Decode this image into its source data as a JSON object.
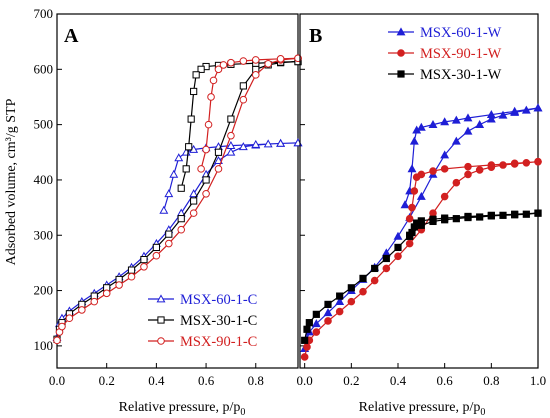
{
  "chart_data": [
    {
      "type": "line",
      "panel_label": "A",
      "xlabel": "Relative pressure, p/p",
      "xlabel_sub": "0",
      "ylabel": "Adsorbed volume, cm³/g STP",
      "xlim": [
        0.0,
        0.97
      ],
      "ylim": [
        60,
        700
      ],
      "xticks": [
        0.0,
        0.2,
        0.4,
        0.6,
        0.8
      ],
      "xtick_labels": [
        "0.0",
        "0.2",
        "0.4",
        "0.6",
        "0.8"
      ],
      "yticks": [
        100,
        200,
        300,
        400,
        500,
        600,
        700
      ],
      "ytick_labels": [
        "100",
        "200",
        "300",
        "400",
        "500",
        "600",
        "700"
      ],
      "legend_position": "bottom-right",
      "series": [
        {
          "name": "MSX-60-1-C",
          "color": "#1f1fd6",
          "marker": "triangle-open",
          "adsorption": [
            [
              0.0,
              115
            ],
            [
              0.01,
              140
            ],
            [
              0.02,
              150
            ],
            [
              0.05,
              163
            ],
            [
              0.1,
              180
            ],
            [
              0.15,
              195
            ],
            [
              0.2,
              210
            ],
            [
              0.25,
              225
            ],
            [
              0.3,
              242
            ],
            [
              0.35,
              262
            ],
            [
              0.4,
              285
            ],
            [
              0.45,
              310
            ],
            [
              0.5,
              340
            ],
            [
              0.55,
              375
            ],
            [
              0.6,
              410
            ],
            [
              0.65,
              435
            ],
            [
              0.7,
              450
            ],
            [
              0.75,
              460
            ],
            [
              0.8,
              463
            ],
            [
              0.85,
              465
            ],
            [
              0.9,
              466
            ],
            [
              0.97,
              467
            ]
          ],
          "desorption": [
            [
              0.97,
              467
            ],
            [
              0.9,
              466
            ],
            [
              0.8,
              464
            ],
            [
              0.7,
              462
            ],
            [
              0.65,
              460
            ],
            [
              0.6,
              458
            ],
            [
              0.55,
              455
            ],
            [
              0.52,
              450
            ],
            [
              0.49,
              440
            ],
            [
              0.47,
              410
            ],
            [
              0.45,
              375
            ],
            [
              0.43,
              345
            ]
          ]
        },
        {
          "name": "MSX-30-1-C",
          "color": "#000000",
          "marker": "square-open",
          "adsorption": [
            [
              0.0,
              112
            ],
            [
              0.01,
              130
            ],
            [
              0.02,
              142
            ],
            [
              0.05,
              158
            ],
            [
              0.1,
              175
            ],
            [
              0.15,
              190
            ],
            [
              0.2,
              205
            ],
            [
              0.25,
              220
            ],
            [
              0.3,
              237
            ],
            [
              0.35,
              256
            ],
            [
              0.4,
              278
            ],
            [
              0.45,
              302
            ],
            [
              0.5,
              330
            ],
            [
              0.55,
              362
            ],
            [
              0.6,
              400
            ],
            [
              0.65,
              450
            ],
            [
              0.7,
              510
            ],
            [
              0.75,
              570
            ],
            [
              0.8,
              600
            ],
            [
              0.85,
              608
            ],
            [
              0.9,
              612
            ],
            [
              0.97,
              614
            ]
          ],
          "desorption": [
            [
              0.97,
              614
            ],
            [
              0.9,
              613
            ],
            [
              0.8,
              611
            ],
            [
              0.7,
              609
            ],
            [
              0.65,
              607
            ],
            [
              0.6,
              605
            ],
            [
              0.58,
              600
            ],
            [
              0.56,
              590
            ],
            [
              0.55,
              560
            ],
            [
              0.54,
              510
            ],
            [
              0.53,
              460
            ],
            [
              0.52,
              420
            ],
            [
              0.5,
              385
            ]
          ]
        },
        {
          "name": "MSX-90-1-C",
          "color": "#d22020",
          "marker": "circle-open",
          "adsorption": [
            [
              0.0,
              110
            ],
            [
              0.01,
              125
            ],
            [
              0.02,
              135
            ],
            [
              0.05,
              150
            ],
            [
              0.1,
              165
            ],
            [
              0.15,
              180
            ],
            [
              0.2,
              195
            ],
            [
              0.25,
              210
            ],
            [
              0.3,
              225
            ],
            [
              0.35,
              243
            ],
            [
              0.4,
              263
            ],
            [
              0.45,
              285
            ],
            [
              0.5,
              310
            ],
            [
              0.55,
              340
            ],
            [
              0.6,
              375
            ],
            [
              0.65,
              420
            ],
            [
              0.7,
              480
            ],
            [
              0.75,
              545
            ],
            [
              0.8,
              590
            ],
            [
              0.85,
              610
            ],
            [
              0.9,
              617
            ],
            [
              0.97,
              620
            ]
          ],
          "desorption": [
            [
              0.97,
              620
            ],
            [
              0.9,
              619
            ],
            [
              0.8,
              617
            ],
            [
              0.75,
              615
            ],
            [
              0.7,
              612
            ],
            [
              0.67,
              608
            ],
            [
              0.65,
              600
            ],
            [
              0.63,
              580
            ],
            [
              0.62,
              550
            ],
            [
              0.61,
              500
            ],
            [
              0.6,
              455
            ],
            [
              0.58,
              420
            ]
          ]
        }
      ]
    },
    {
      "type": "line",
      "panel_label": "B",
      "xlabel": "Relative pressure, p/p",
      "xlabel_sub": "0",
      "xlim": [
        -0.02,
        1.0
      ],
      "ylim": [
        60,
        700
      ],
      "xticks": [
        0.0,
        0.2,
        0.4,
        0.6,
        0.8,
        1.0
      ],
      "xtick_labels": [
        "0.0",
        "0.2",
        "0.4",
        "0.6",
        "0.8",
        "1.0"
      ],
      "yticks": [
        100,
        200,
        300,
        400,
        500,
        600,
        700
      ],
      "legend_position": "top-right",
      "series": [
        {
          "name": "MSX-60-1-W",
          "color": "#1f1fd6",
          "marker": "triangle-filled",
          "adsorption": [
            [
              0.0,
              95
            ],
            [
              0.01,
              112
            ],
            [
              0.02,
              125
            ],
            [
              0.05,
              140
            ],
            [
              0.1,
              160
            ],
            [
              0.15,
              180
            ],
            [
              0.2,
              200
            ],
            [
              0.25,
              220
            ],
            [
              0.3,
              242
            ],
            [
              0.35,
              268
            ],
            [
              0.4,
              298
            ],
            [
              0.45,
              332
            ],
            [
              0.5,
              370
            ],
            [
              0.55,
              410
            ],
            [
              0.6,
              445
            ],
            [
              0.65,
              470
            ],
            [
              0.7,
              488
            ],
            [
              0.75,
              500
            ],
            [
              0.8,
              510
            ],
            [
              0.85,
              517
            ],
            [
              0.9,
              522
            ],
            [
              0.95,
              526
            ],
            [
              1.0,
              530
            ]
          ],
          "desorption": [
            [
              1.0,
              530
            ],
            [
              0.9,
              524
            ],
            [
              0.8,
              518
            ],
            [
              0.7,
              512
            ],
            [
              0.65,
              508
            ],
            [
              0.6,
              505
            ],
            [
              0.55,
              500
            ],
            [
              0.5,
              495
            ],
            [
              0.48,
              490
            ],
            [
              0.47,
              470
            ],
            [
              0.46,
              420
            ],
            [
              0.45,
              380
            ],
            [
              0.43,
              355
            ]
          ]
        },
        {
          "name": "MSX-90-1-W",
          "color": "#d22020",
          "marker": "circle-filled",
          "adsorption": [
            [
              0.0,
              80
            ],
            [
              0.01,
              98
            ],
            [
              0.02,
              110
            ],
            [
              0.05,
              125
            ],
            [
              0.1,
              145
            ],
            [
              0.15,
              162
            ],
            [
              0.2,
              180
            ],
            [
              0.25,
              198
            ],
            [
              0.3,
              218
            ],
            [
              0.35,
              240
            ],
            [
              0.4,
              262
            ],
            [
              0.45,
              285
            ],
            [
              0.5,
              310
            ],
            [
              0.55,
              340
            ],
            [
              0.6,
              370
            ],
            [
              0.65,
              395
            ],
            [
              0.7,
              410
            ],
            [
              0.75,
              418
            ],
            [
              0.8,
              423
            ],
            [
              0.85,
              427
            ],
            [
              0.9,
              429
            ],
            [
              0.95,
              431
            ],
            [
              1.0,
              433
            ]
          ],
          "desorption": [
            [
              1.0,
              433
            ],
            [
              0.9,
              430
            ],
            [
              0.8,
              427
            ],
            [
              0.7,
              424
            ],
            [
              0.6,
              420
            ],
            [
              0.55,
              416
            ],
            [
              0.5,
              410
            ],
            [
              0.48,
              405
            ],
            [
              0.47,
              380
            ],
            [
              0.46,
              350
            ],
            [
              0.45,
              330
            ]
          ]
        },
        {
          "name": "MSX-30-1-W",
          "color": "#000000",
          "marker": "square-filled",
          "adsorption": [
            [
              0.0,
              110
            ],
            [
              0.01,
              130
            ],
            [
              0.02,
              142
            ],
            [
              0.05,
              157
            ],
            [
              0.1,
              175
            ],
            [
              0.15,
              190
            ],
            [
              0.2,
              205
            ],
            [
              0.25,
              222
            ],
            [
              0.3,
              240
            ],
            [
              0.35,
              258
            ],
            [
              0.4,
              278
            ],
            [
              0.45,
              300
            ],
            [
              0.5,
              318
            ],
            [
              0.55,
              325
            ],
            [
              0.6,
              328
            ],
            [
              0.65,
              330
            ],
            [
              0.7,
              332
            ],
            [
              0.75,
              333
            ],
            [
              0.8,
              335
            ],
            [
              0.85,
              336
            ],
            [
              0.9,
              337
            ],
            [
              0.95,
              338
            ],
            [
              1.0,
              340
            ]
          ],
          "desorption": [
            [
              1.0,
              340
            ],
            [
              0.9,
              338
            ],
            [
              0.8,
              336
            ],
            [
              0.7,
              334
            ],
            [
              0.6,
              331
            ],
            [
              0.55,
              329
            ],
            [
              0.5,
              326
            ],
            [
              0.48,
              322
            ],
            [
              0.47,
              315
            ],
            [
              0.46,
              305
            ],
            [
              0.45,
              298
            ]
          ]
        }
      ]
    }
  ]
}
